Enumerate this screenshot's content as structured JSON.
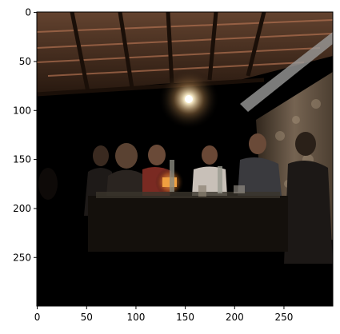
{
  "axes": {
    "x_ticks": [
      "0",
      "50",
      "100",
      "150",
      "200",
      "250"
    ],
    "y_ticks": [
      "0",
      "50",
      "100",
      "150",
      "200",
      "250"
    ],
    "x_range": [
      0,
      299
    ],
    "y_range": [
      0,
      299
    ],
    "y_inverted": true,
    "grid": false
  },
  "image": {
    "subject": "photo",
    "colors": {
      "background": "#000000",
      "ceiling_brown": "#7a4a30",
      "lamp_glow": "#fff4d8",
      "stone_wall": "#8a7560",
      "candle": "#f0a040"
    }
  }
}
